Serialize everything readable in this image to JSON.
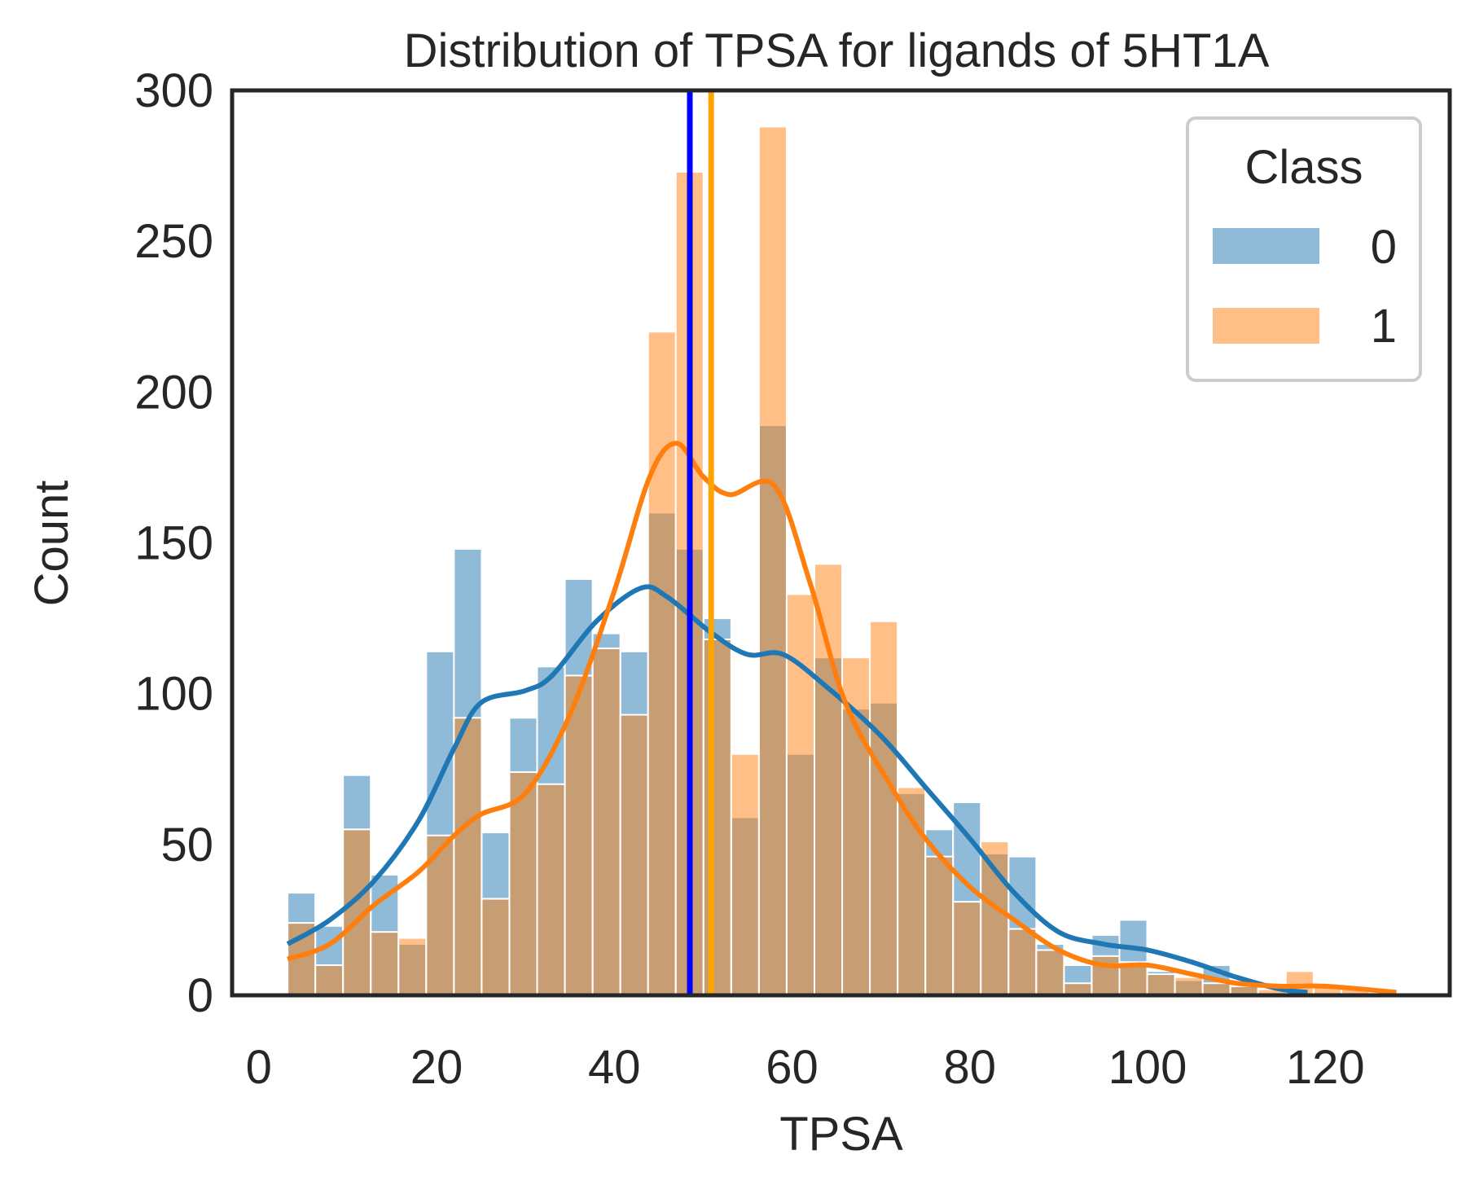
{
  "chart_data": {
    "type": "bar",
    "title": "Distribution of TPSA for ligands of 5HT1A",
    "xlabel": "TPSA",
    "ylabel": "Count",
    "xlim": [
      -3,
      134
    ],
    "ylim": [
      0,
      300
    ],
    "xticks": [
      0,
      20,
      40,
      60,
      80,
      100,
      120
    ],
    "yticks": [
      0,
      50,
      100,
      150,
      200,
      250,
      300
    ],
    "grid": false,
    "legend": {
      "title": "Class",
      "placement": "top-right"
    },
    "bin_edges": [
      3.24,
      6.36,
      9.48,
      12.6,
      15.72,
      18.84,
      21.96,
      25.08,
      28.2,
      31.32,
      34.44,
      37.56,
      40.68,
      43.8,
      46.92,
      50.04,
      53.16,
      56.28,
      59.4,
      62.52,
      65.64,
      68.76,
      71.88,
      75.0,
      78.12,
      81.24,
      84.36,
      87.48,
      90.6,
      93.72,
      96.84,
      99.96,
      103.08,
      106.2,
      109.32,
      112.44,
      115.56,
      118.68,
      121.8,
      124.92,
      128.04
    ],
    "series": [
      {
        "name": "0",
        "color": "#1f77b4",
        "counts": [
          34,
          23,
          73,
          40,
          17,
          114,
          148,
          54,
          92,
          109,
          138,
          120,
          114,
          160,
          148,
          125,
          59,
          189,
          80,
          112,
          95,
          97,
          67,
          55,
          64,
          47,
          46,
          17,
          10,
          20,
          25,
          8,
          5,
          10,
          3,
          1,
          0,
          1,
          0,
          0
        ],
        "kde": [
          [
            3.24,
            17
          ],
          [
            8,
            25
          ],
          [
            13,
            38
          ],
          [
            18,
            58
          ],
          [
            22,
            82
          ],
          [
            25,
            97
          ],
          [
            30,
            101
          ],
          [
            33,
            106
          ],
          [
            38,
            124
          ],
          [
            43,
            135
          ],
          [
            46,
            132
          ],
          [
            51,
            120
          ],
          [
            55,
            113
          ],
          [
            59,
            113
          ],
          [
            64,
            102
          ],
          [
            70,
            86
          ],
          [
            75,
            69
          ],
          [
            80,
            52
          ],
          [
            85,
            34
          ],
          [
            90,
            21
          ],
          [
            95,
            17
          ],
          [
            100,
            15
          ],
          [
            105,
            11
          ],
          [
            110,
            6
          ],
          [
            115,
            2
          ],
          [
            118,
            1
          ]
        ]
      },
      {
        "name": "1",
        "color": "#ff7f0e",
        "counts": [
          24,
          10,
          55,
          21,
          19,
          53,
          92,
          32,
          74,
          70,
          106,
          115,
          93,
          220,
          273,
          118,
          80,
          288,
          133,
          143,
          112,
          124,
          69,
          46,
          31,
          51,
          22,
          15,
          4,
          13,
          11,
          7,
          6,
          4,
          3,
          2,
          8,
          3,
          2,
          1
        ],
        "kde": [
          [
            3.24,
            12
          ],
          [
            8,
            17
          ],
          [
            13,
            30
          ],
          [
            18,
            41
          ],
          [
            22,
            53
          ],
          [
            25,
            60
          ],
          [
            30,
            67
          ],
          [
            35,
            93
          ],
          [
            40,
            134
          ],
          [
            44,
            172
          ],
          [
            47,
            183
          ],
          [
            50,
            172
          ],
          [
            53,
            166
          ],
          [
            58,
            169
          ],
          [
            62,
            137
          ],
          [
            66,
            97
          ],
          [
            71,
            70
          ],
          [
            75,
            52
          ],
          [
            80,
            36
          ],
          [
            85,
            25
          ],
          [
            90,
            15
          ],
          [
            95,
            10
          ],
          [
            100,
            10
          ],
          [
            105,
            7
          ],
          [
            110,
            4
          ],
          [
            115,
            3
          ],
          [
            120,
            3
          ],
          [
            128,
            1
          ]
        ]
      }
    ],
    "vlines": [
      {
        "x": 48.5,
        "color": "#0000ff"
      },
      {
        "x": 50.9,
        "color": "#ffa500"
      }
    ]
  }
}
